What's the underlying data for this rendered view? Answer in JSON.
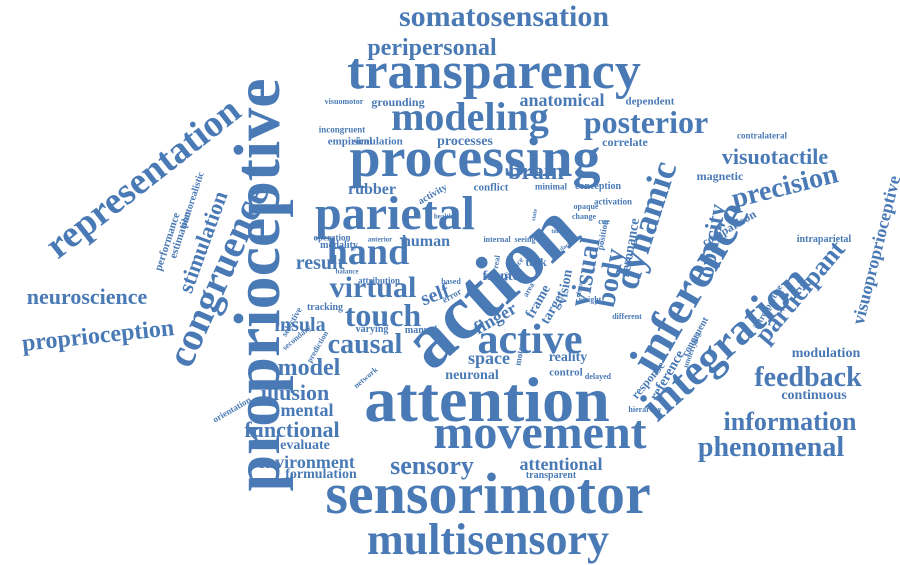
{
  "colors": {
    "background": "#ffffff",
    "word": "#4a7ab5"
  },
  "words": [
    "proprioceptive",
    "action",
    "attention",
    "sensorimotor",
    "processing",
    "parietal",
    "movement",
    "integration",
    "inference",
    "transparency",
    "congruence",
    "multisensory",
    "representation",
    "active",
    "modeling",
    "hand",
    "somatosensation",
    "posterior",
    "touch",
    "dynamic",
    "peripersonal",
    "virtual",
    "causal",
    "feedback",
    "information",
    "phenomenal",
    "precision",
    "participant",
    "neuroscience",
    "proprioception",
    "visuotactile",
    "sensory",
    "opacity",
    "visual",
    "body",
    "model",
    "illusion",
    "functional",
    "insula",
    "environment",
    "attentional",
    "anatomical",
    "result",
    "self",
    "stimulation",
    "visuoproprioceptive",
    "modulation",
    "continuous",
    "mental",
    "evaluate",
    "brain",
    "human",
    "space",
    "neuronal",
    "reality",
    "rubber",
    "formulation",
    "grounding",
    "simulation",
    "processes",
    "empirical",
    "incongruent",
    "correlate",
    "dependent",
    "contralateral",
    "magnetic",
    "comparison",
    "intraparietal",
    "performance",
    "estimation",
    "photorealistic",
    "conflict",
    "activity",
    "minimal",
    "conception",
    "activation",
    "healthy",
    "operation",
    "modality",
    "anterior",
    "attribution",
    "tracking",
    "selective",
    "secondary",
    "prediction",
    "orientation",
    "network",
    "manual",
    "varying",
    "finger",
    "frame",
    "target",
    "vision",
    "task",
    "fronto",
    "error",
    "based",
    "resonance",
    "position",
    "motor",
    "control",
    "delayed",
    "transparent",
    "hierarchy",
    "response",
    "reference",
    "congruent",
    "underlying",
    "introspective",
    "different",
    "visuomotor",
    "balance",
    "internal",
    "seeing",
    "cue",
    "real",
    "change",
    "opaque",
    "weight",
    "evidence",
    "area",
    "dark",
    "state",
    "visuo",
    "time"
  ]
}
